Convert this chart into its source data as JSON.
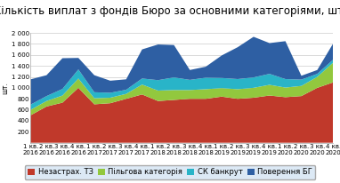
{
  "title": "Кількість виплат з фондів Бюро за основними категоріями, шт.",
  "ylabel": "шт.",
  "ylim": [
    0,
    2000
  ],
  "yticks": [
    0,
    200,
    400,
    600,
    800,
    1000,
    1200,
    1400,
    1600,
    1800,
    2000
  ],
  "xlabels": [
    "1 кв.\n2016",
    "2 кв.\n2016",
    "3 кв.\n2016",
    "4 кв.\n2016",
    "1 кв.\n2017",
    "2 кв.\n2017",
    "3 кв.\n2017",
    "4 кв.\n2017",
    "1 кв.\n2018",
    "2 кв.\n2018",
    "3 кв.\n2018",
    "4 кв.\n2018",
    "1 кв.\n2019",
    "2 кв.\n2019",
    "3 кв.\n2019",
    "4 кв.\n2019",
    "1 кв.\n2020",
    "2 кв.\n2020",
    "3 кв.\n2020",
    "4 кв.\n2020"
  ],
  "series": {
    "Незастрах. ТЗ": [
      500,
      660,
      730,
      1000,
      700,
      720,
      800,
      880,
      760,
      780,
      800,
      800,
      840,
      800,
      820,
      860,
      830,
      850,
      1000,
      1100
    ],
    "Пільгова категорія": [
      100,
      100,
      130,
      170,
      110,
      100,
      90,
      180,
      190,
      180,
      160,
      175,
      155,
      175,
      180,
      195,
      175,
      185,
      200,
      360
    ],
    "СК банкрут": [
      95,
      90,
      120,
      165,
      110,
      90,
      75,
      110,
      190,
      230,
      185,
      210,
      185,
      185,
      190,
      200,
      155,
      115,
      55,
      55
    ],
    "Поверення БГ": [
      460,
      380,
      560,
      210,
      310,
      220,
      190,
      530,
      650,
      590,
      180,
      200,
      410,
      580,
      740,
      560,
      690,
      70,
      70,
      295
    ]
  },
  "colors": [
    "#c0392b",
    "#92c83e",
    "#29b4c8",
    "#2e5fa3"
  ],
  "legend_labels": [
    "Незастрах. ТЗ",
    "Пільгова категорія",
    "СК банкрут",
    "Поверення БГ"
  ],
  "background_color": "#ffffff",
  "plot_bg_color": "#ffffff",
  "legend_bg_color": "#dce9f5",
  "title_fontsize": 8.5,
  "legend_fontsize": 6,
  "tick_fontsize": 5,
  "ylabel_fontsize": 5.5
}
